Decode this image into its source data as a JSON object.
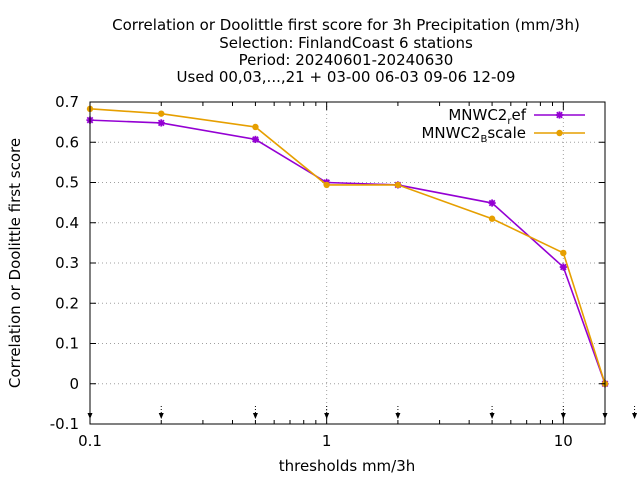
{
  "chart_data": {
    "type": "line",
    "title_lines": [
      "Correlation or Doolittle first score  for 3h Precipitation (mm/3h)",
      "Selection: FinlandCoast      6 stations",
      "Period: 20240601-20240630",
      "Used 00,03,...,21 + 03-00 06-03 09-06 12-09"
    ],
    "xlabel": "thresholds mm/3h",
    "ylabel": "Correlation or Doolittle first score",
    "x_scale": "log",
    "xlim": [
      0.1,
      15
    ],
    "ylim": [
      -0.1,
      0.7
    ],
    "x_ticks": [
      {
        "value": 0.1,
        "label": "0.1"
      },
      {
        "value": 1,
        "label": "1"
      },
      {
        "value": 10,
        "label": "10"
      }
    ],
    "y_ticks": [
      {
        "value": -0.1,
        "label": "-0.1"
      },
      {
        "value": 0,
        "label": "0"
      },
      {
        "value": 0.1,
        "label": "0.1"
      },
      {
        "value": 0.2,
        "label": "0.2"
      },
      {
        "value": 0.3,
        "label": "0.3"
      },
      {
        "value": 0.4,
        "label": "0.4"
      },
      {
        "value": 0.5,
        "label": "0.5"
      },
      {
        "value": 0.6,
        "label": "0.6"
      },
      {
        "value": 0.7,
        "label": "0.7"
      }
    ],
    "grid": true,
    "legend_position": "top-right",
    "threshold_markers": [
      0.1,
      0.2,
      0.5,
      1,
      2,
      5,
      10,
      15,
      20
    ],
    "series": [
      {
        "legend_main": "MNWC2",
        "legend_sub": "r",
        "legend_tail": "ef",
        "color": "#9400d3",
        "marker": "star",
        "x": [
          0.1,
          0.2,
          0.5,
          1,
          2,
          5,
          10,
          15
        ],
        "y": [
          0.655,
          0.648,
          0.607,
          0.5,
          0.494,
          0.449,
          0.29,
          0.0
        ]
      },
      {
        "legend_main": "MNWC2",
        "legend_sub": "B",
        "legend_tail": "scale",
        "color": "#e69f00",
        "marker": "circle",
        "x": [
          0.1,
          0.2,
          0.5,
          1,
          2,
          5,
          10,
          15
        ],
        "y": [
          0.683,
          0.671,
          0.638,
          0.494,
          0.494,
          0.41,
          0.325,
          0.0
        ]
      }
    ]
  }
}
